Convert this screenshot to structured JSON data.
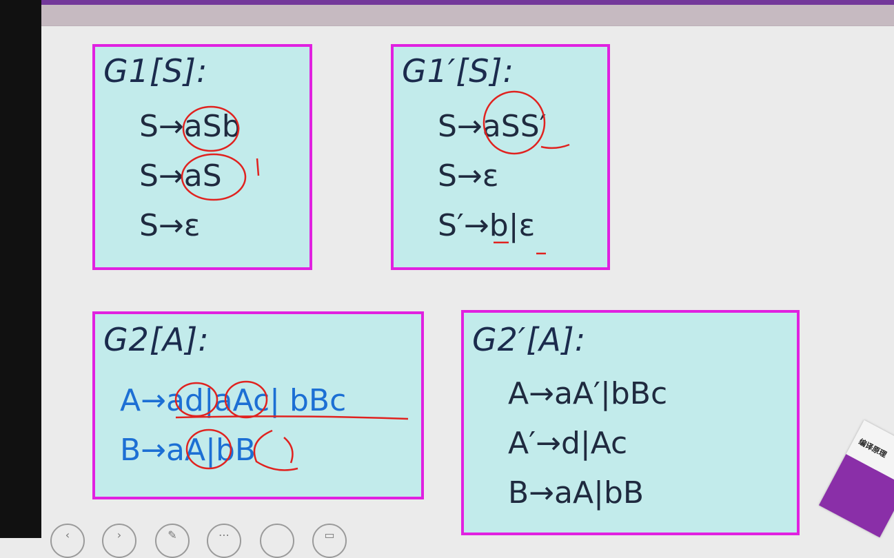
{
  "slide": {
    "boxes": [
      {
        "title": "G1[S]:",
        "productions": [
          "S→aSb",
          "S→aS",
          "S→ε"
        ]
      },
      {
        "title": "G1′[S]:",
        "productions": [
          "S→aSS′",
          "S→ε",
          "S′→b|ε"
        ]
      },
      {
        "title": "G2[A]:",
        "productions": [
          "A→ad|aAc| bBc",
          "B→aA|bB"
        ]
      },
      {
        "title": "G2′[A]:",
        "productions": [
          "A→aA′|bBc",
          "A′→d|Ac",
          "B→aA|bB"
        ]
      }
    ],
    "book_title": "编译原理"
  },
  "toolbar": {
    "icons": [
      "prev-icon",
      "next-icon",
      "pen-icon",
      "select-icon",
      "blank-icon",
      "layout-icon"
    ]
  },
  "colors": {
    "border": "#e021e0",
    "box_fill": "#c2ebeb",
    "annotation": "#e0221f",
    "accent": "#73389a",
    "blue_text": "#1c6fd4"
  }
}
